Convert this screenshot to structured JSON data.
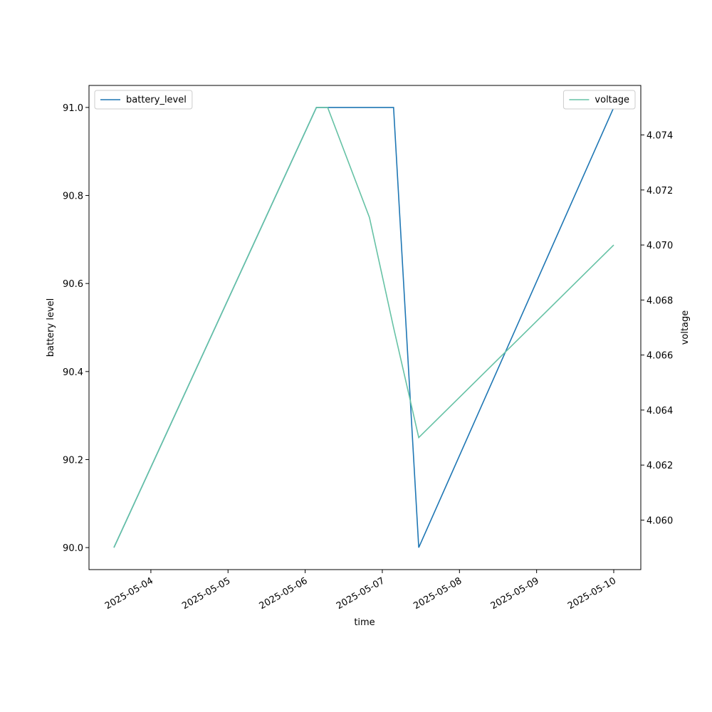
{
  "chart_data": {
    "type": "line",
    "x_label": "time",
    "y_label": "battery level",
    "y2_label": "voltage",
    "x": [
      "2025-05-03T12:30",
      "2025-05-06T03:30",
      "2025-05-06T07:00",
      "2025-05-06T20:00",
      "2025-05-07T03:30",
      "2025-05-07T11:20",
      "2025-05-10T00:00"
    ],
    "xlim": [
      "2025-05-03T04:45",
      "2025-05-10T08:25"
    ],
    "xticks": [
      "2025-05-04",
      "2025-05-05",
      "2025-05-06",
      "2025-05-07",
      "2025-05-08",
      "2025-05-09",
      "2025-05-10"
    ],
    "ylim": [
      89.95,
      91.05
    ],
    "yticks": [
      {
        "value": 90,
        "label": "90.0"
      },
      90.2,
      90.4,
      90.6,
      90.8,
      {
        "value": 91,
        "label": "91.0"
      }
    ],
    "y2lim": [
      4.0582,
      4.0758
    ],
    "y2ticks": [
      {
        "value": 4.06,
        "label": "4.060"
      },
      4.062,
      4.064,
      4.066,
      4.068,
      {
        "value": 4.07,
        "label": "4.070"
      },
      4.072,
      4.074
    ],
    "series": [
      {
        "name": "battery_level",
        "color": "#1f77b4",
        "legend": "upper left",
        "values": [
          90.0,
          91.0,
          91.0,
          91.0,
          91.0,
          90.0,
          91.0
        ]
      },
      {
        "name": "voltage",
        "color": "#66c2a5",
        "axis": "y2",
        "legend": "upper right",
        "values": [
          4.059,
          4.075,
          4.075,
          4.071,
          4.067,
          4.063,
          4.07
        ]
      }
    ]
  }
}
